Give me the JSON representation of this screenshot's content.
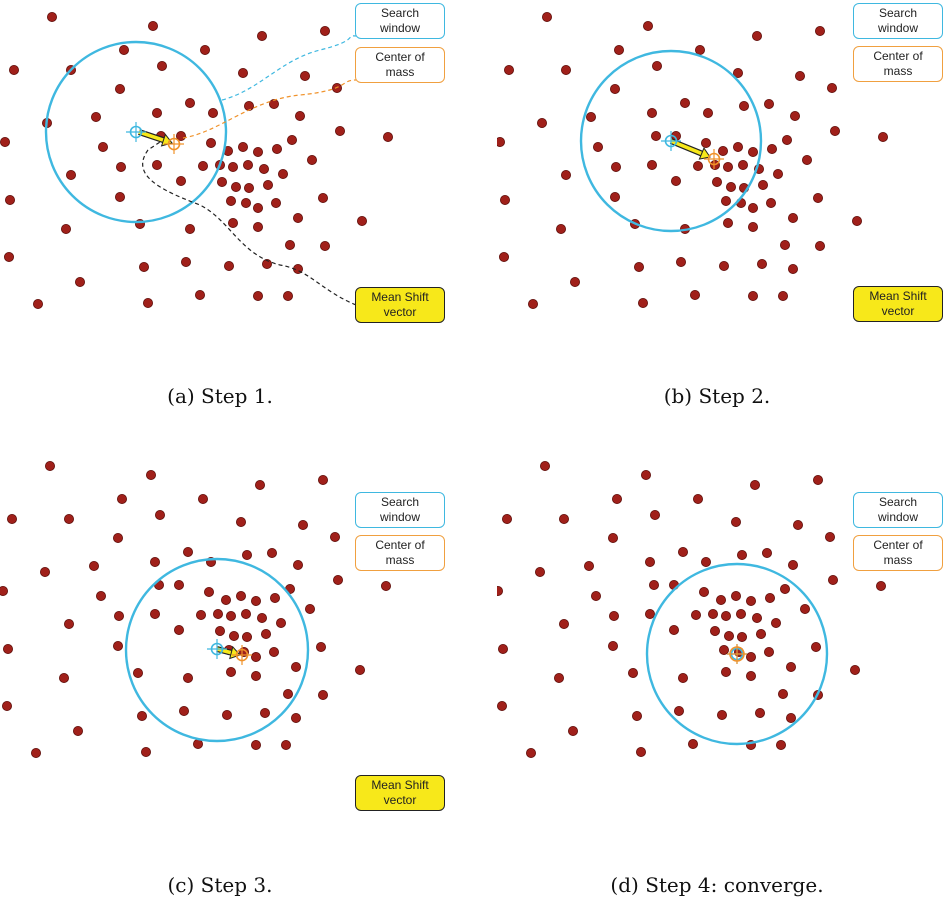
{
  "legend": {
    "search_window": "Search window",
    "center_of_mass": "Center of mass",
    "mean_shift_vector": "Mean Shift vector"
  },
  "panels": [
    {
      "caption": "(a) Step 1."
    },
    {
      "caption": "(b) Step 2."
    },
    {
      "caption": "(c) Step 3."
    },
    {
      "caption": "(d) Step 4: converge."
    }
  ],
  "colors": {
    "dot": "#a0201a",
    "window": "#3fb8e0",
    "center_of_mass": "#f0922a",
    "vector": "#f7e81a"
  }
}
